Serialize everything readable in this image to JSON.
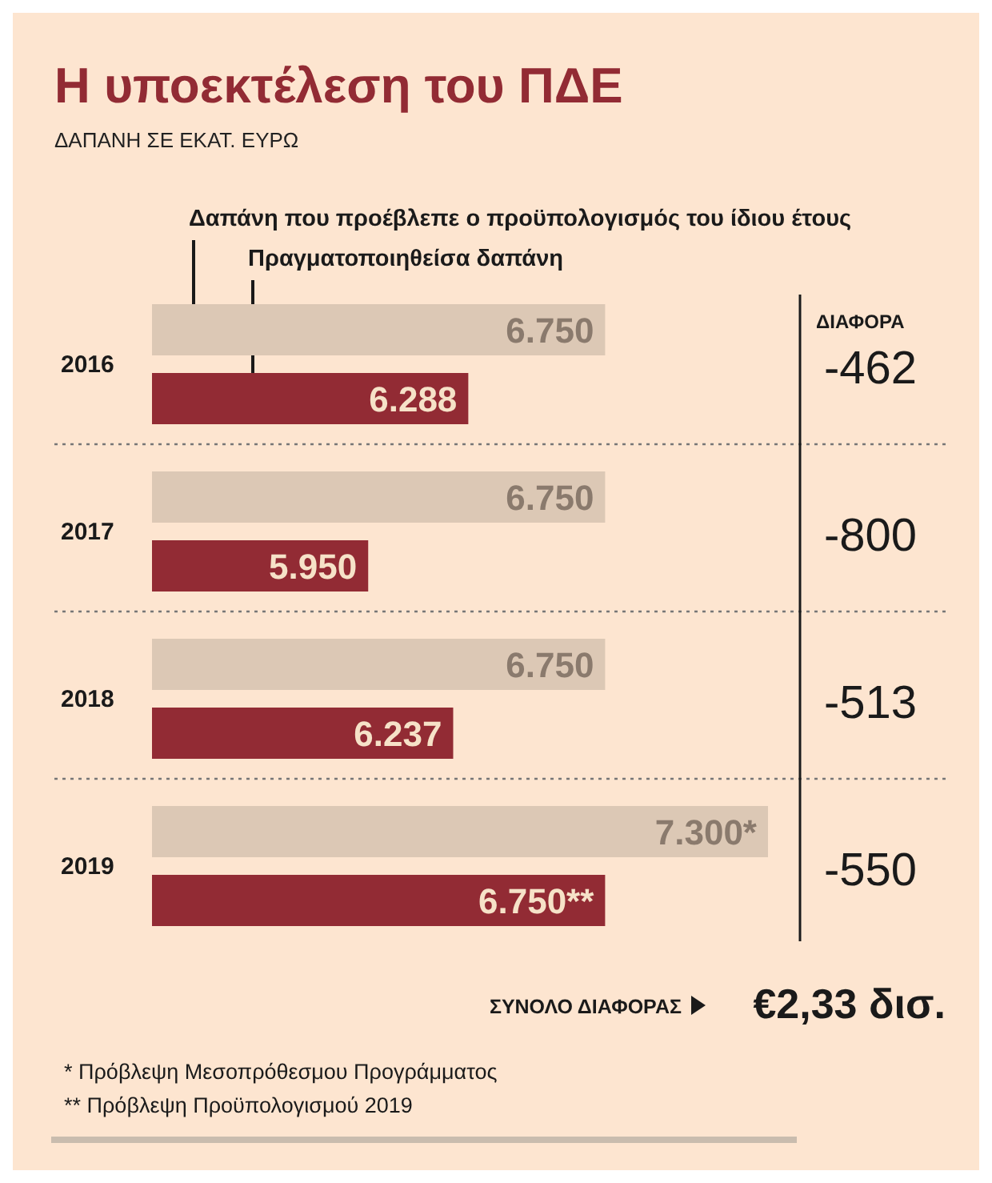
{
  "chart_data": {
    "type": "bar",
    "orientation": "horizontal",
    "title": "Η υποεκτέλεση του ΠΔΕ",
    "subtitle": "ΔΑΠΑΝΗ ΣΕ ΕΚΑΤ. ΕΥΡΩ",
    "categories": [
      "2016",
      "2017",
      "2018",
      "2019"
    ],
    "xlim": [
      5220,
      7300
    ],
    "legend": "top",
    "series": [
      {
        "name": "Δαπάνη που προέβλεπε ο προϋπολογισμός του ίδιου έτους",
        "color": "#dcc8b5",
        "values": [
          6750,
          6750,
          6750,
          7300
        ],
        "value_labels": [
          "6.750",
          "6.750",
          "6.750",
          "7.300*"
        ]
      },
      {
        "name": "Πραγματοποιηθείσα δαπάνη",
        "color": "#922b34",
        "values": [
          6288,
          5950,
          6237,
          6750
        ],
        "value_labels": [
          "6.288",
          "5.950",
          "6.237",
          "6.750**"
        ]
      }
    ],
    "annotations": [
      "ΔΙΑΦΟΡΑ",
      "-462",
      "-800",
      "-513",
      "-550",
      "ΣΥΝΟΛΟ ΔΙΑΦΟΡΑΣ",
      "€2,33 δισ.",
      "* Πρόβλεψη Μεσοπρόθεσμου Προγράμματος",
      "** Πρόβλεψη Προϋπολογισμού 2019"
    ]
  }
}
